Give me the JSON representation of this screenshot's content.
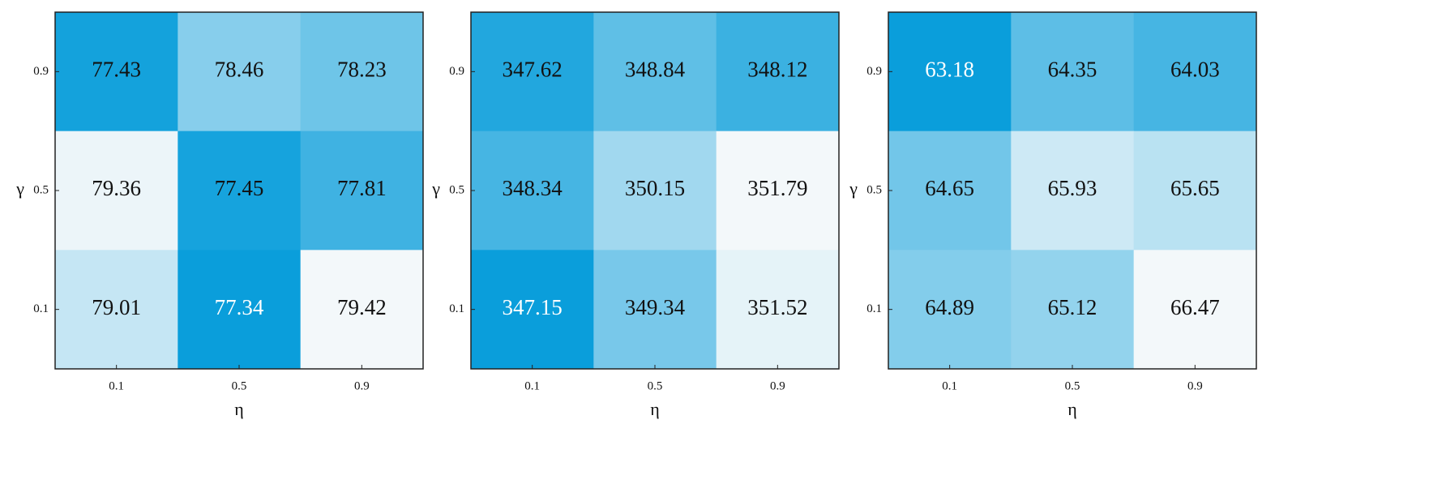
{
  "chart_data": [
    {
      "type": "heatmap",
      "x_categories": [
        "0.1",
        "0.5",
        "0.9"
      ],
      "y_categories": [
        "0.9",
        "0.5",
        "0.1"
      ],
      "xlabel": "η",
      "ylabel": "γ",
      "values": [
        [
          77.43,
          78.46,
          78.23
        ],
        [
          79.36,
          77.45,
          77.81
        ],
        [
          79.01,
          77.34,
          79.42
        ]
      ],
      "colormap": [
        "#0a9edb",
        "#f3f8fa"
      ]
    },
    {
      "type": "heatmap",
      "x_categories": [
        "0.1",
        "0.5",
        "0.9"
      ],
      "y_categories": [
        "0.9",
        "0.5",
        "0.1"
      ],
      "xlabel": "η",
      "ylabel": "γ",
      "values": [
        [
          347.62,
          348.84,
          348.12
        ],
        [
          348.34,
          350.15,
          351.79
        ],
        [
          347.15,
          349.34,
          351.52
        ]
      ],
      "colormap": [
        "#0a9edb",
        "#f3f8fa"
      ]
    },
    {
      "type": "heatmap",
      "x_categories": [
        "0.1",
        "0.5",
        "0.9"
      ],
      "y_categories": [
        "0.9",
        "0.5",
        "0.1"
      ],
      "xlabel": "η",
      "ylabel": "γ",
      "values": [
        [
          63.18,
          64.35,
          64.03
        ],
        [
          64.65,
          65.93,
          65.65
        ],
        [
          64.89,
          65.12,
          66.47
        ]
      ],
      "colormap": [
        "#0a9edb",
        "#f3f8fa"
      ]
    }
  ]
}
